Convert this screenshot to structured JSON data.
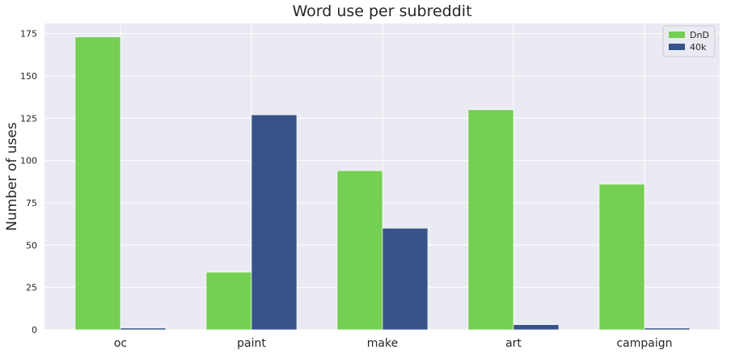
{
  "chart_data": {
    "type": "bar",
    "title": "Word use per subreddit",
    "xlabel": "",
    "ylabel": "Number of uses",
    "categories": [
      "oc",
      "paint",
      "make",
      "art",
      "campaign"
    ],
    "series": [
      {
        "name": "DnD",
        "color": "#75cf52",
        "values": [
          173,
          34,
          94,
          130,
          86
        ]
      },
      {
        "name": "40k",
        "color": "#36548a",
        "values": [
          1,
          127,
          60,
          3,
          1
        ]
      }
    ],
    "ylim": [
      0,
      181
    ],
    "yticks": [
      0,
      25,
      50,
      75,
      100,
      125,
      150,
      175
    ],
    "grid": true,
    "legend_position": "top-right",
    "background_color": "#eaeaf2",
    "grid_color": "#ffffff"
  }
}
